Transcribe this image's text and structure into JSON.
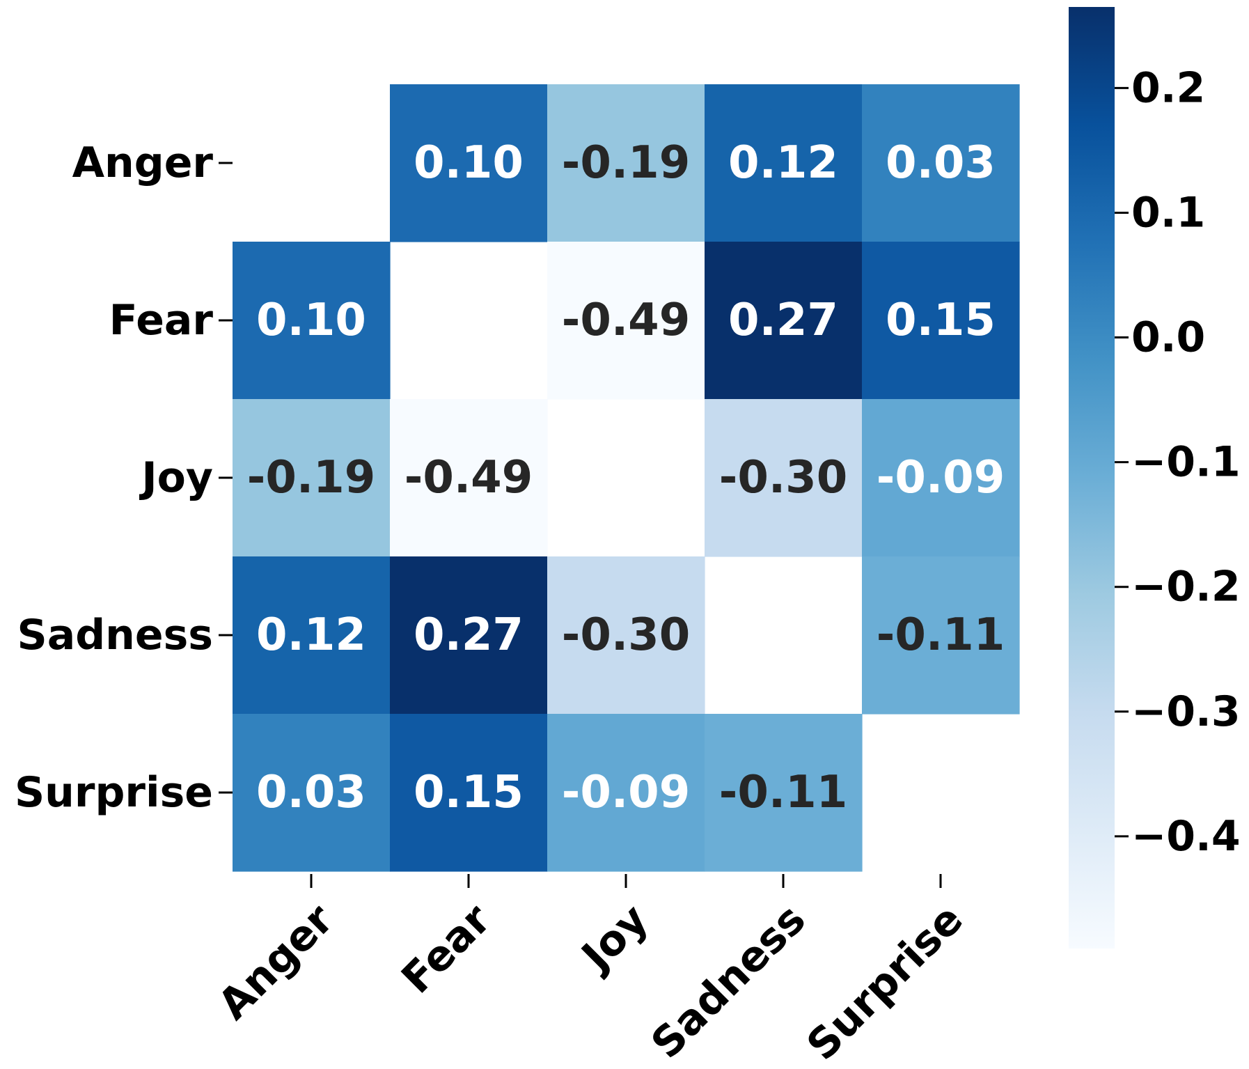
{
  "chart_data": {
    "type": "heatmap",
    "title": "",
    "xlabel": "",
    "ylabel": "",
    "rows": [
      "Anger",
      "Fear",
      "Joy",
      "Sadness",
      "Surprise"
    ],
    "cols": [
      "Anger",
      "Fear",
      "Joy",
      "Sadness",
      "Surprise"
    ],
    "values": [
      [
        null,
        0.1,
        -0.19,
        0.12,
        0.03
      ],
      [
        0.1,
        null,
        -0.49,
        0.27,
        0.15
      ],
      [
        -0.19,
        -0.49,
        null,
        -0.3,
        -0.09
      ],
      [
        0.12,
        0.27,
        -0.3,
        null,
        -0.11
      ],
      [
        0.03,
        0.15,
        -0.09,
        -0.11,
        null
      ]
    ],
    "labels": [
      [
        "",
        "0.10",
        "-0.19",
        "0.12",
        "0.03"
      ],
      [
        "0.10",
        "",
        "-0.49",
        "0.27",
        "0.15"
      ],
      [
        "-0.19",
        "-0.49",
        "",
        "-0.30",
        "-0.09"
      ],
      [
        "0.12",
        "0.27",
        "-0.30",
        "",
        "-0.11"
      ],
      [
        "0.03",
        "0.15",
        "-0.09",
        "-0.11",
        ""
      ]
    ],
    "diagonal_masked": true,
    "colormap": "Blues",
    "vmin": -0.49,
    "vmax": 0.27,
    "colorbar": {
      "ticks": [
        0.2,
        0.1,
        0.0,
        -0.1,
        -0.2,
        -0.3,
        -0.4
      ],
      "tick_labels": [
        "0.2",
        "0.1",
        "0.0",
        "−0.1",
        "−0.2",
        "−0.3",
        "−0.4"
      ]
    }
  }
}
